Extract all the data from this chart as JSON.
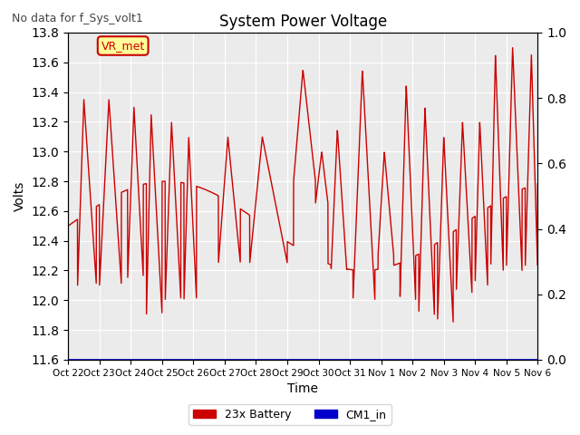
{
  "title": "System Power Voltage",
  "subtitle": "No data for f_Sys_volt1",
  "ylabel_left": "Volts",
  "xlabel": "Time",
  "ylim_left": [
    11.6,
    13.8
  ],
  "ylim_right": [
    0.0,
    1.0
  ],
  "yticks_left": [
    11.6,
    11.8,
    12.0,
    12.2,
    12.4,
    12.6,
    12.8,
    13.0,
    13.2,
    13.4,
    13.6,
    13.8
  ],
  "yticks_right": [
    0.0,
    0.2,
    0.4,
    0.6,
    0.8,
    1.0
  ],
  "xtick_labels": [
    "Oct 22",
    "Oct 23",
    "Oct 24",
    "Oct 25",
    "Oct 26",
    "Oct 27",
    "Oct 28",
    "Oct 29",
    "Oct 30",
    "Oct 31",
    "Nov 1",
    "Nov 2",
    "Nov 3",
    "Nov 4",
    "Nov 5",
    "Nov 6"
  ],
  "legend_entries": [
    "23x Battery",
    "CM1_in"
  ],
  "legend_colors": [
    "#cc0000",
    "#0000cc"
  ],
  "vr_met_label": "VR_met",
  "vr_met_color": "#cc0000",
  "vr_met_bg": "#ffff99",
  "plot_bg": "#ebebeb",
  "battery_color": "#cc0000",
  "cm1_color": "#0000cc",
  "grid_color": "#ffffff",
  "num_days": 16
}
